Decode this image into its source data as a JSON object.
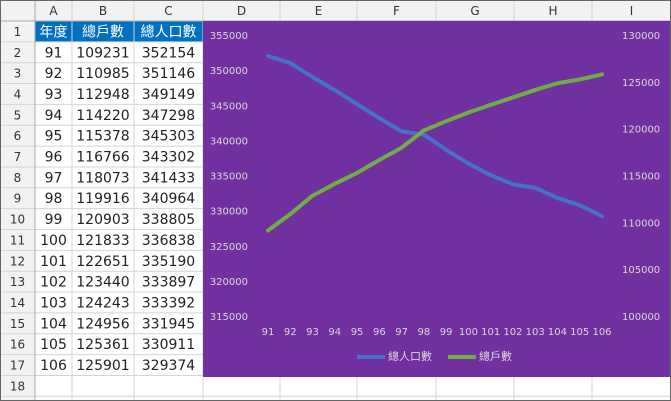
{
  "sheet": {
    "columns": [
      "A",
      "B",
      "C",
      "D",
      "E",
      "F",
      "G",
      "H",
      "I"
    ],
    "rows": [
      1,
      2,
      3,
      4,
      5,
      6,
      7,
      8,
      9,
      10,
      11,
      12,
      13,
      14,
      15,
      16,
      17,
      18
    ]
  },
  "table": {
    "header": [
      "年度",
      "總戶數",
      "總人口數"
    ],
    "rows": [
      [
        91,
        109231,
        352154
      ],
      [
        92,
        110985,
        351146
      ],
      [
        93,
        112948,
        349149
      ],
      [
        94,
        114220,
        347298
      ],
      [
        95,
        115378,
        345303
      ],
      [
        96,
        116766,
        343302
      ],
      [
        97,
        118073,
        341433
      ],
      [
        98,
        119916,
        340964
      ],
      [
        99,
        120903,
        338805
      ],
      [
        100,
        121833,
        336838
      ],
      [
        101,
        122651,
        335190
      ],
      [
        102,
        123440,
        333897
      ],
      [
        103,
        124243,
        333392
      ],
      [
        104,
        124956,
        331945
      ],
      [
        105,
        125361,
        330911
      ],
      [
        106,
        125901,
        329374
      ]
    ]
  },
  "chart_data": {
    "type": "line",
    "categories": [
      91,
      92,
      93,
      94,
      95,
      96,
      97,
      98,
      99,
      100,
      101,
      102,
      103,
      104,
      105,
      106
    ],
    "series": [
      {
        "name": "總人口數",
        "color": "#4472c4",
        "values": [
          352154,
          351146,
          349149,
          347298,
          345303,
          343302,
          341433,
          340964,
          338805,
          336838,
          335190,
          333897,
          333392,
          331945,
          330911,
          329374
        ]
      },
      {
        "name": "總戶數",
        "color": "#70ad47",
        "axis": "y2",
        "values": [
          109231,
          110985,
          112948,
          114220,
          115378,
          116766,
          118073,
          119916,
          120903,
          121833,
          122651,
          123440,
          124243,
          124956,
          125361,
          125901
        ]
      }
    ],
    "ylim": [
      315000,
      355000
    ],
    "yticks": [
      315000,
      320000,
      325000,
      330000,
      335000,
      340000,
      345000,
      350000,
      355000
    ],
    "y2lim": [
      100000,
      130000
    ],
    "y2ticks": [
      100000,
      105000,
      110000,
      115000,
      120000,
      125000,
      130000
    ],
    "background": "#7030a0",
    "legend": "bottom"
  }
}
